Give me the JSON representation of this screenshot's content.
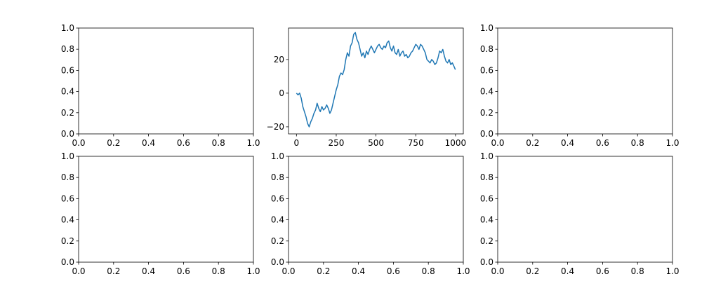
{
  "chart_data": [
    {
      "type": "line",
      "xlim": [
        0,
        1
      ],
      "ylim": [
        0,
        1
      ],
      "xticks": [
        {
          "value": 0,
          "label": "0.0"
        },
        0.2,
        0.4,
        0.6,
        0.8,
        {
          "value": 1,
          "label": "1.0"
        }
      ],
      "yticks": [
        {
          "value": 0,
          "label": "0.0"
        },
        0.2,
        0.4,
        0.6,
        0.8,
        {
          "value": 1,
          "label": "1.0"
        }
      ]
    },
    {
      "type": "line",
      "xlim": [
        -49.95,
        1048.95
      ],
      "ylim": [
        -24.2,
        38.7
      ],
      "xticks": [
        0,
        250,
        500,
        750,
        1000
      ],
      "yticks": [
        {
          "value": -20,
          "label": "−20"
        },
        0,
        20
      ],
      "x": [
        0,
        10,
        20,
        30,
        40,
        50,
        60,
        70,
        80,
        90,
        100,
        110,
        120,
        130,
        140,
        150,
        160,
        170,
        180,
        190,
        200,
        210,
        220,
        230,
        240,
        250,
        260,
        270,
        280,
        290,
        300,
        310,
        320,
        330,
        340,
        350,
        360,
        370,
        380,
        390,
        400,
        410,
        420,
        430,
        440,
        450,
        460,
        470,
        480,
        490,
        500,
        510,
        520,
        530,
        540,
        550,
        560,
        570,
        580,
        590,
        600,
        610,
        620,
        630,
        640,
        650,
        660,
        670,
        680,
        690,
        700,
        710,
        720,
        730,
        740,
        750,
        760,
        770,
        780,
        790,
        800,
        810,
        820,
        830,
        840,
        850,
        860,
        870,
        880,
        890,
        900,
        910,
        920,
        930,
        940,
        950,
        960,
        970,
        980,
        990,
        999
      ],
      "series": [
        {
          "color": "#1f77b4",
          "values": [
            0,
            -1,
            0,
            -3,
            -8,
            -11,
            -14,
            -18,
            -20,
            -17,
            -15,
            -12,
            -10,
            -6,
            -9,
            -11,
            -8,
            -10,
            -9,
            -7,
            -9,
            -12,
            -10,
            -6,
            -2,
            2,
            5,
            10,
            12,
            11,
            14,
            20,
            24,
            22,
            28,
            30,
            35,
            36,
            32,
            30,
            26,
            22,
            24,
            21,
            25,
            23,
            26,
            28,
            26,
            24,
            26,
            28,
            29,
            27,
            26,
            28,
            27,
            30,
            31,
            27,
            25,
            28,
            24,
            23,
            26,
            22,
            24,
            25,
            22,
            23,
            21,
            22,
            24,
            25,
            27,
            29,
            28,
            26,
            29,
            28,
            26,
            24,
            20,
            19,
            18,
            20,
            19,
            17,
            18,
            21,
            25,
            24,
            26,
            22,
            19,
            18,
            20,
            17,
            18,
            16,
            14
          ]
        }
      ]
    },
    {
      "type": "line",
      "xlim": [
        0,
        1
      ],
      "ylim": [
        0,
        1
      ],
      "xticks": [
        {
          "value": 0,
          "label": "0.0"
        },
        0.2,
        0.4,
        0.6,
        0.8,
        {
          "value": 1,
          "label": "1.0"
        }
      ],
      "yticks": [
        {
          "value": 0,
          "label": "0.0"
        },
        0.2,
        0.4,
        0.6,
        0.8,
        {
          "value": 1,
          "label": "1.0"
        }
      ]
    },
    {
      "type": "line",
      "xlim": [
        0,
        1
      ],
      "ylim": [
        0,
        1
      ],
      "xticks": [
        {
          "value": 0,
          "label": "0.0"
        },
        0.2,
        0.4,
        0.6,
        0.8,
        {
          "value": 1,
          "label": "1.0"
        }
      ],
      "yticks": [
        {
          "value": 0,
          "label": "0.0"
        },
        0.2,
        0.4,
        0.6,
        0.8,
        {
          "value": 1,
          "label": "1.0"
        }
      ]
    },
    {
      "type": "line",
      "xlim": [
        0,
        1
      ],
      "ylim": [
        0,
        1
      ],
      "xticks": [
        {
          "value": 0,
          "label": "0.0"
        },
        0.2,
        0.4,
        0.6,
        0.8,
        {
          "value": 1,
          "label": "1.0"
        }
      ],
      "yticks": [
        {
          "value": 0,
          "label": "0.0"
        },
        0.2,
        0.4,
        0.6,
        0.8,
        {
          "value": 1,
          "label": "1.0"
        }
      ]
    },
    {
      "type": "line",
      "xlim": [
        0,
        1
      ],
      "ylim": [
        0,
        1
      ],
      "xticks": [
        {
          "value": 0,
          "label": "0.0"
        },
        0.2,
        0.4,
        0.6,
        0.8,
        {
          "value": 1,
          "label": "1.0"
        }
      ],
      "yticks": [
        {
          "value": 0,
          "label": "0.0"
        },
        0.2,
        0.4,
        0.6,
        0.8,
        {
          "value": 1,
          "label": "1.0"
        }
      ]
    }
  ]
}
